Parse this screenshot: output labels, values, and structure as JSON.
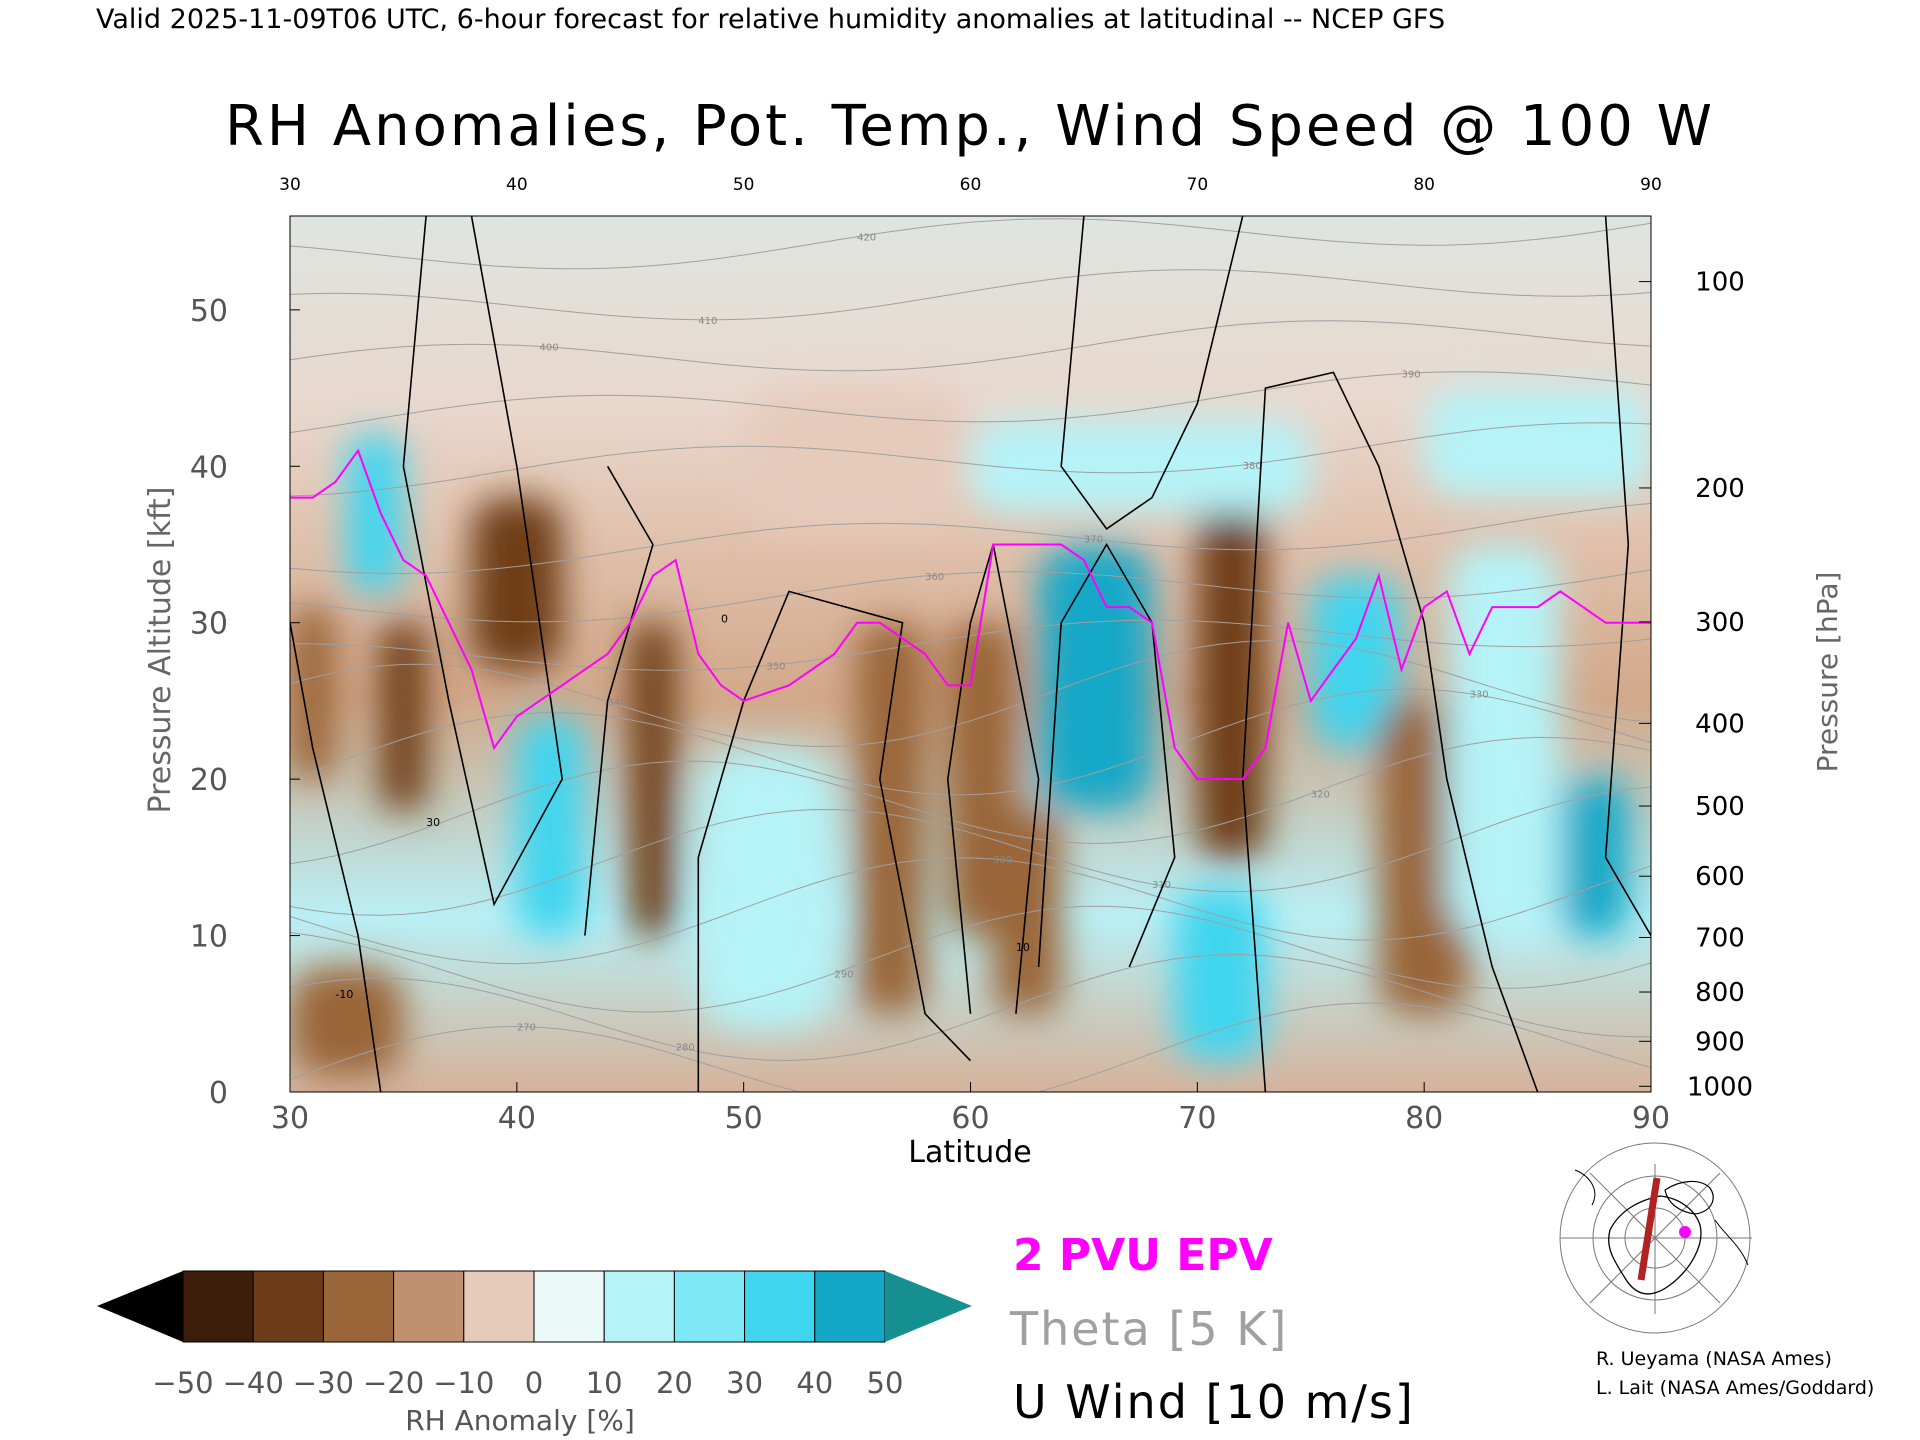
{
  "header": "Valid 2025-11-09T06 UTC, 6-hour forecast for relative humidity anomalies at latitudinal -- NCEP GFS",
  "chart_data": {
    "type": "heatmap",
    "title": "RH Anomalies, Pot. Temp., Wind Speed @ 100 W",
    "xlabel": "Latitude",
    "ylabel": "Pressure Altitude [kft]",
    "y2label": "Pressure [hPa]",
    "xlim": [
      30,
      90
    ],
    "ylim": [
      0,
      56
    ],
    "x_ticks": [
      "30",
      "40",
      "50",
      "60",
      "70",
      "80",
      "90"
    ],
    "y_ticks": [
      "0",
      "10",
      "20",
      "30",
      "40",
      "50"
    ],
    "pressure_ticks": [
      "100",
      "200",
      "300",
      "400",
      "500",
      "600",
      "700",
      "800",
      "900",
      "1000"
    ],
    "pressure_values": [
      100,
      200,
      300,
      400,
      500,
      600,
      700,
      800,
      900,
      1000
    ],
    "colorbar": {
      "label": "RH Anomaly [%]",
      "ticks": [
        "−50",
        "−40",
        "−30",
        "−20",
        "−10",
        "0",
        "10",
        "20",
        "30",
        "40",
        "50"
      ],
      "colors": [
        "#3c1e0a",
        "#6e3c19",
        "#9a6539",
        "#c09070",
        "#e6cbbb",
        "#ebf9f9",
        "#b5f3f8",
        "#7de8f6",
        "#40d5ef",
        "#14a8c8"
      ],
      "under_color": "#000000",
      "over_color": "#158f8f"
    },
    "rh_anomaly_cells": [
      {
        "x0": 30,
        "x1": 32,
        "y0": 20,
        "y1": 31,
        "v": -25
      },
      {
        "x0": 34,
        "x1": 36,
        "y0": 18,
        "y1": 30,
        "v": -40
      },
      {
        "x0": 32.5,
        "x1": 35,
        "y0": 32,
        "y1": 42,
        "v": 30
      },
      {
        "x0": 38,
        "x1": 42,
        "y0": 27,
        "y1": 38,
        "v": -40
      },
      {
        "x0": 40,
        "x1": 43,
        "y0": 10,
        "y1": 24,
        "v": 35
      },
      {
        "x0": 45,
        "x1": 47,
        "y0": 10,
        "y1": 30,
        "v": -35
      },
      {
        "x0": 48,
        "x1": 54,
        "y0": 4,
        "y1": 22,
        "v": 12
      },
      {
        "x0": 55,
        "x1": 58,
        "y0": 5,
        "y1": 30,
        "v": -25
      },
      {
        "x0": 59,
        "x1": 62,
        "y0": 10,
        "y1": 30,
        "v": -30
      },
      {
        "x0": 63,
        "x1": 68,
        "y0": 18,
        "y1": 35,
        "v": 40
      },
      {
        "x0": 61,
        "x1": 64,
        "y0": 5,
        "y1": 18,
        "v": -25
      },
      {
        "x0": 70,
        "x1": 73,
        "y0": 15,
        "y1": 38,
        "v": -40
      },
      {
        "x0": 69,
        "x1": 73,
        "y0": 2,
        "y1": 13,
        "v": 30
      },
      {
        "x0": 75,
        "x1": 79,
        "y0": 22,
        "y1": 33,
        "v": 30
      },
      {
        "x0": 78,
        "x1": 82,
        "y0": 5,
        "y1": 25,
        "v": -30
      },
      {
        "x0": 81,
        "x1": 86,
        "y0": 10,
        "y1": 35,
        "v": 15
      },
      {
        "x0": 86,
        "x1": 89,
        "y0": 10,
        "y1": 20,
        "v": 40
      },
      {
        "x0": 30,
        "x1": 35,
        "y0": 1,
        "y1": 8,
        "v": -30
      },
      {
        "x0": 50,
        "x1": 60,
        "y0": 36,
        "y1": 45,
        "v": -10
      },
      {
        "x0": 60,
        "x1": 75,
        "y0": 37,
        "y1": 43,
        "v": 10
      },
      {
        "x0": 80,
        "x1": 90,
        "y0": 38,
        "y1": 45,
        "v": 12
      }
    ],
    "theta_labels": [
      "270",
      "280",
      "290",
      "300",
      "310",
      "320",
      "330",
      "340",
      "350",
      "360",
      "370",
      "380",
      "390",
      "400",
      "410",
      "420"
    ],
    "u_wind_contour_labels": [
      "-10",
      "0",
      "10",
      "30"
    ],
    "legend": [
      {
        "label": "2 PVU EPV",
        "color": "#ff00ff"
      },
      {
        "label": "Theta [5 K]",
        "color": "#a0a0a0"
      },
      {
        "label": "U Wind [10 m/s]",
        "color": "#000000"
      }
    ],
    "epv_2pvu": [
      [
        30,
        38
      ],
      [
        31,
        38
      ],
      [
        32,
        39
      ],
      [
        33,
        41
      ],
      [
        34,
        37
      ],
      [
        35,
        34
      ],
      [
        36,
        33
      ],
      [
        37,
        30
      ],
      [
        38,
        27
      ],
      [
        39,
        22
      ],
      [
        40,
        24
      ],
      [
        41,
        25
      ],
      [
        42,
        26
      ],
      [
        43,
        27
      ],
      [
        44,
        28
      ],
      [
        45,
        30
      ],
      [
        46,
        33
      ],
      [
        47,
        34
      ],
      [
        48,
        28
      ],
      [
        49,
        26
      ],
      [
        50,
        25
      ],
      [
        52,
        26
      ],
      [
        54,
        28
      ],
      [
        55,
        30
      ],
      [
        56,
        30
      ],
      [
        57,
        29
      ],
      [
        58,
        28
      ],
      [
        59,
        26
      ],
      [
        60,
        26
      ],
      [
        61,
        35
      ],
      [
        62,
        35
      ],
      [
        63,
        35
      ],
      [
        64,
        35
      ],
      [
        65,
        34
      ],
      [
        66,
        31
      ],
      [
        67,
        31
      ],
      [
        68,
        30
      ],
      [
        69,
        22
      ],
      [
        70,
        20
      ],
      [
        71,
        20
      ],
      [
        72,
        20
      ],
      [
        73,
        22
      ],
      [
        74,
        30
      ],
      [
        75,
        25
      ],
      [
        76,
        27
      ],
      [
        77,
        29
      ],
      [
        78,
        33
      ],
      [
        79,
        27
      ],
      [
        80,
        31
      ],
      [
        81,
        32
      ],
      [
        82,
        28
      ],
      [
        83,
        31
      ],
      [
        84,
        31
      ],
      [
        85,
        31
      ],
      [
        86,
        32
      ],
      [
        87,
        31
      ],
      [
        88,
        30
      ],
      [
        89,
        30
      ],
      [
        90,
        30
      ]
    ],
    "credits": [
      "R. Ueyama (NASA Ames)",
      "L. Lait (NASA Ames/Goddard)"
    ]
  },
  "colors": {
    "epv": "#ff00ff",
    "theta": "#a0a0a0",
    "wind": "#000000",
    "background_top": "#dfe5e1"
  },
  "inset_map": {
    "section_color": "#b22222",
    "marker_color": "#ff00ff"
  }
}
